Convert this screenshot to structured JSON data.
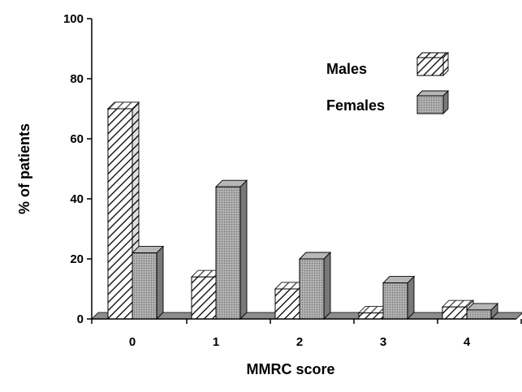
{
  "chart_data": {
    "type": "bar",
    "categories": [
      "0",
      "1",
      "2",
      "3",
      "4"
    ],
    "series": [
      {
        "name": "Males",
        "values": [
          70,
          14,
          10,
          2,
          4
        ],
        "pattern": "diagonal-hatch"
      },
      {
        "name": "Females",
        "values": [
          22,
          44,
          20,
          12,
          3
        ],
        "pattern": "gray-stipple"
      }
    ],
    "xlabel": "MMRC score",
    "ylabel": "% of patients",
    "ylim": [
      0,
      100
    ],
    "yticks": [
      0,
      20,
      40,
      60,
      80,
      100
    ],
    "grid": false,
    "legend_position": "top-right",
    "style": "3d",
    "colors": {
      "female_fill": "#a6a6a6",
      "floor": "#8c8c8c",
      "axis": "#000000"
    }
  }
}
